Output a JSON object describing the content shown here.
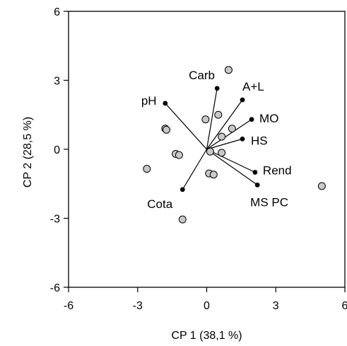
{
  "chart_data": {
    "type": "scatter",
    "subtype": "biplot",
    "title": "",
    "xlabel": "CP 1 (38,1 %)",
    "ylabel": "CP 2 (28,5 %)",
    "xlim": [
      -6,
      6
    ],
    "ylim": [
      -6,
      6
    ],
    "xticks": [
      "-6",
      "-3",
      "0",
      "3",
      "6"
    ],
    "yticks": [
      "-6",
      "-3",
      "0",
      "3",
      "6"
    ],
    "grid": false,
    "legend": "none",
    "colors": {
      "point_fill": "#c8c8c8",
      "point_stroke": "#000000",
      "vector": "#000000",
      "axis": "#000000"
    },
    "points": [
      {
        "x": 0.95,
        "y": 3.45
      },
      {
        "x": -0.05,
        "y": 1.3
      },
      {
        "x": 0.5,
        "y": 1.5
      },
      {
        "x": -1.8,
        "y": 0.9
      },
      {
        "x": -1.75,
        "y": 0.85
      },
      {
        "x": 1.1,
        "y": 0.9
      },
      {
        "x": 0.65,
        "y": 0.55
      },
      {
        "x": 0.65,
        "y": -0.15
      },
      {
        "x": 0.15,
        "y": -0.1
      },
      {
        "x": -1.35,
        "y": -0.2
      },
      {
        "x": -1.2,
        "y": -0.25
      },
      {
        "x": -2.6,
        "y": -0.85
      },
      {
        "x": 0.1,
        "y": -1.05
      },
      {
        "x": 0.3,
        "y": -1.1
      },
      {
        "x": 5.0,
        "y": -1.6
      },
      {
        "x": -1.05,
        "y": -3.05
      }
    ],
    "vectors": [
      {
        "label": "Carb",
        "x": 0.45,
        "y": 2.65
      },
      {
        "label": "A+L",
        "x": 1.55,
        "y": 2.15
      },
      {
        "label": "pH",
        "x": -1.8,
        "y": 2.0
      },
      {
        "label": "MO",
        "x": 1.95,
        "y": 1.3
      },
      {
        "label": "HS",
        "x": 1.55,
        "y": 0.45
      },
      {
        "label": "Rend",
        "x": 2.1,
        "y": -1.0
      },
      {
        "label": "MS PC",
        "x": 2.2,
        "y": -1.55
      },
      {
        "label": "Cota",
        "x": -1.05,
        "y": -1.75
      }
    ]
  }
}
